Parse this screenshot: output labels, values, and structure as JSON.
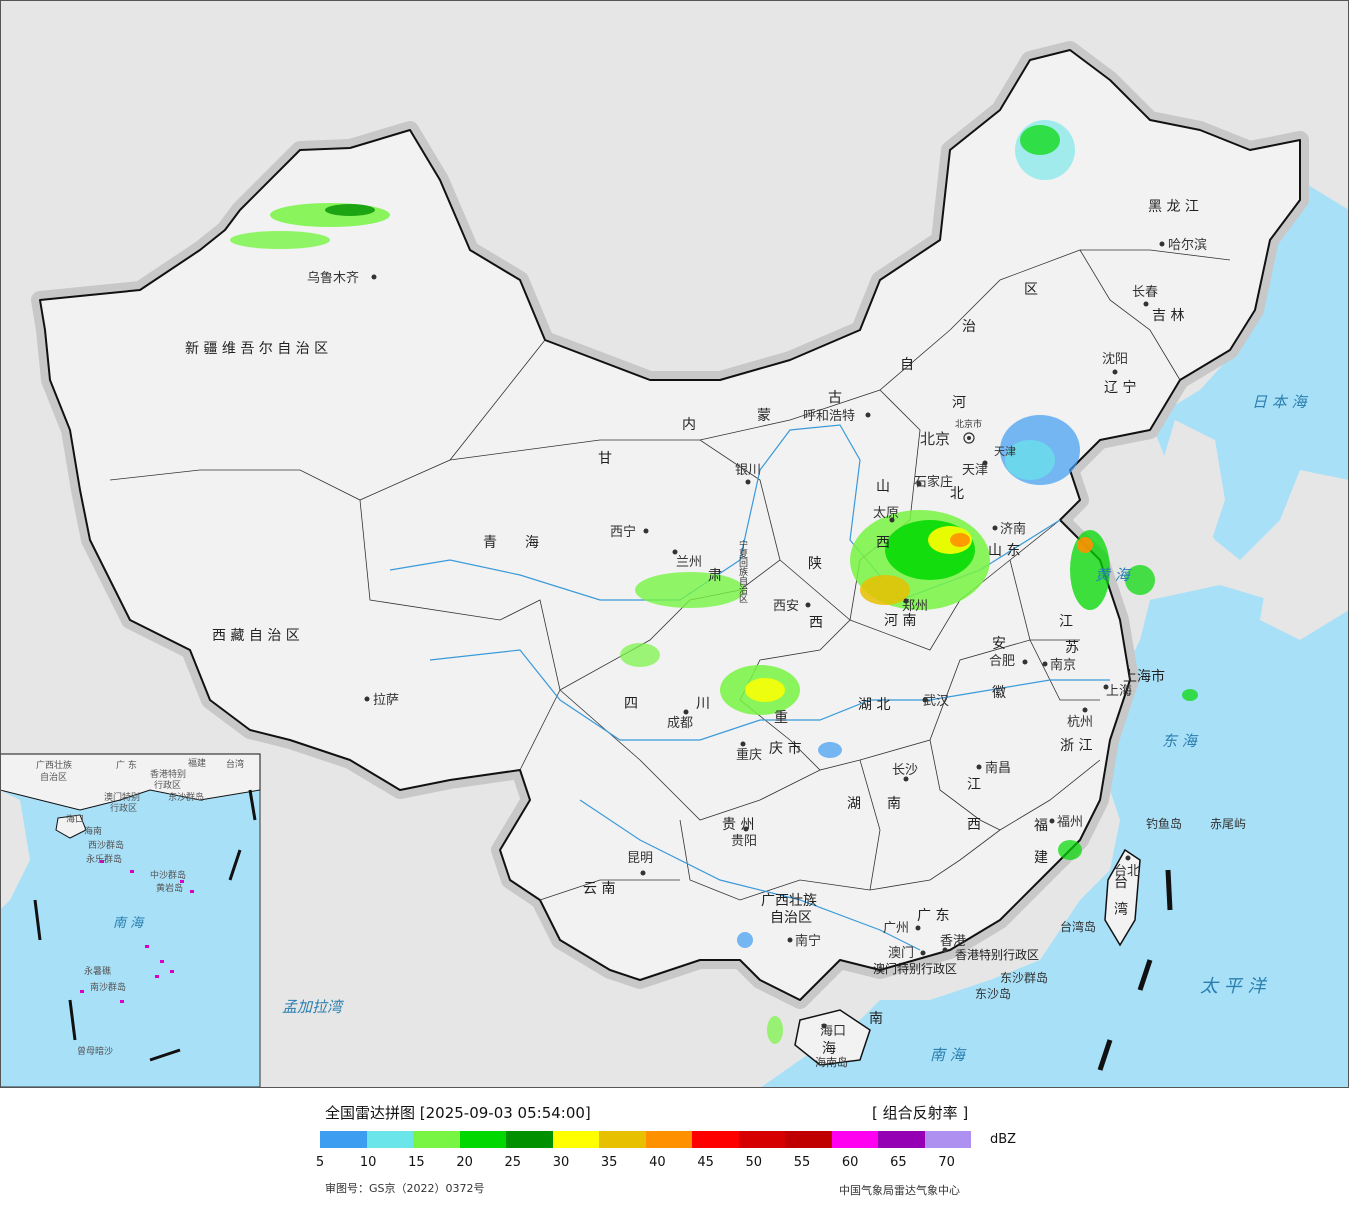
{
  "legend": {
    "title": "全国雷达拼图 [2025-09-03 05:54:00]",
    "product": "[ 组合反射率 ]",
    "unit": "dBZ",
    "approval": "审图号：GS京（2022）0372号",
    "credit": "中国气象局雷达气象中心",
    "colors": [
      "#3d9df1",
      "#6ae6ea",
      "#77f542",
      "#00d800",
      "#019000",
      "#ffff00",
      "#e7c000",
      "#ff9000",
      "#ff0000",
      "#d60000",
      "#c00000",
      "#ff00f0",
      "#9600b4",
      "#ad90f0"
    ],
    "ticks": [
      "5",
      "10",
      "15",
      "20",
      "25",
      "30",
      "35",
      "40",
      "45",
      "50",
      "55",
      "60",
      "65",
      "70"
    ]
  },
  "map": {
    "colors": {
      "sea": "#a8e0f8",
      "land": "#f2f2f2",
      "outside": "#e6e6e6",
      "border": "#111111",
      "river": "#3a9ad9"
    },
    "cities": [
      {
        "name": "乌鲁木齐"
      },
      {
        "name": "哈尔滨"
      },
      {
        "name": "长春"
      },
      {
        "name": "沈阳"
      },
      {
        "name": "呼和浩特"
      },
      {
        "name": "北京"
      },
      {
        "name": "天津"
      },
      {
        "name": "石家庄"
      },
      {
        "name": "太原"
      },
      {
        "name": "济南"
      },
      {
        "name": "银川"
      },
      {
        "name": "西宁"
      },
      {
        "name": "兰州"
      },
      {
        "name": "西安"
      },
      {
        "name": "郑州"
      },
      {
        "name": "合肥"
      },
      {
        "name": "南京"
      },
      {
        "name": "上海"
      },
      {
        "name": "杭州"
      },
      {
        "name": "武汉"
      },
      {
        "name": "成都"
      },
      {
        "name": "重庆"
      },
      {
        "name": "拉萨"
      },
      {
        "name": "长沙"
      },
      {
        "name": "南昌"
      },
      {
        "name": "福州"
      },
      {
        "name": "台北"
      },
      {
        "name": "贵阳"
      },
      {
        "name": "昆明"
      },
      {
        "name": "南宁"
      },
      {
        "name": "广州"
      },
      {
        "name": "香港"
      },
      {
        "name": "澳门"
      },
      {
        "name": "海口"
      }
    ],
    "provinces": [
      {
        "name": "新 疆 维 吾 尔 自 治 区"
      },
      {
        "name": "西 藏 自 治 区"
      },
      {
        "name": "青　　海"
      },
      {
        "name": "黑 龙 江"
      },
      {
        "name": "吉 林"
      },
      {
        "name": "辽 宁"
      },
      {
        "name": "甘"
      },
      {
        "name": "肃"
      },
      {
        "name": "内"
      },
      {
        "name": "蒙"
      },
      {
        "name": "古"
      },
      {
        "name": "自"
      },
      {
        "name": "治"
      },
      {
        "name": "区"
      },
      {
        "name": "河"
      },
      {
        "name": "北"
      },
      {
        "name": "山"
      },
      {
        "name": "西"
      },
      {
        "name": "山 东"
      },
      {
        "name": "陕"
      },
      {
        "name": "西"
      },
      {
        "name": "河 南"
      },
      {
        "name": "江"
      },
      {
        "name": "苏"
      },
      {
        "name": "安"
      },
      {
        "name": "徽"
      },
      {
        "name": "上海市"
      },
      {
        "name": "浙 江"
      },
      {
        "name": "湖 北"
      },
      {
        "name": "四"
      },
      {
        "name": "川"
      },
      {
        "name": "重"
      },
      {
        "name": "庆 市"
      },
      {
        "name": "湖"
      },
      {
        "name": "南"
      },
      {
        "name": "江"
      },
      {
        "name": "西"
      },
      {
        "name": "福"
      },
      {
        "name": "建"
      },
      {
        "name": "贵 州"
      },
      {
        "name": "云 南"
      },
      {
        "name": "广西壮族"
      },
      {
        "name": "自治区"
      },
      {
        "name": "广 东"
      },
      {
        "name": "海"
      },
      {
        "name": "南"
      },
      {
        "name": "台"
      },
      {
        "name": "湾"
      },
      {
        "name": "北京市"
      },
      {
        "name": "天津"
      },
      {
        "name": "宁夏回族自治区"
      },
      {
        "name": "香港特别行政区"
      },
      {
        "name": "澳门特别行政区"
      }
    ],
    "seas": [
      {
        "name": "日 本 海"
      },
      {
        "name": "东 海"
      },
      {
        "name": "太 平 洋"
      },
      {
        "name": "南 海"
      },
      {
        "name": "孟加拉湾"
      },
      {
        "name": "黄 海"
      }
    ],
    "islands": [
      {
        "name": "钓鱼岛"
      },
      {
        "name": "赤尾屿"
      },
      {
        "name": "台湾岛"
      },
      {
        "name": "东沙群岛"
      },
      {
        "name": "东沙岛"
      },
      {
        "name": "海南岛"
      }
    ],
    "inset": {
      "labels": [
        {
          "name": "广西壮族"
        },
        {
          "name": "自治区"
        },
        {
          "name": "广 东"
        },
        {
          "name": "福建"
        },
        {
          "name": "台湾"
        },
        {
          "name": "香港特别"
        },
        {
          "name": "行政区"
        },
        {
          "name": "澳门特别"
        },
        {
          "name": "行政区"
        },
        {
          "name": "东沙群岛"
        },
        {
          "name": "海口"
        },
        {
          "name": "海南"
        },
        {
          "name": "西沙群岛"
        },
        {
          "name": "永乐群岛"
        },
        {
          "name": "中沙群岛"
        },
        {
          "name": "黄岩岛"
        },
        {
          "name": "南 海"
        },
        {
          "name": "南沙群岛"
        },
        {
          "name": "永暑礁"
        },
        {
          "name": "曾母暗沙"
        }
      ]
    }
  }
}
